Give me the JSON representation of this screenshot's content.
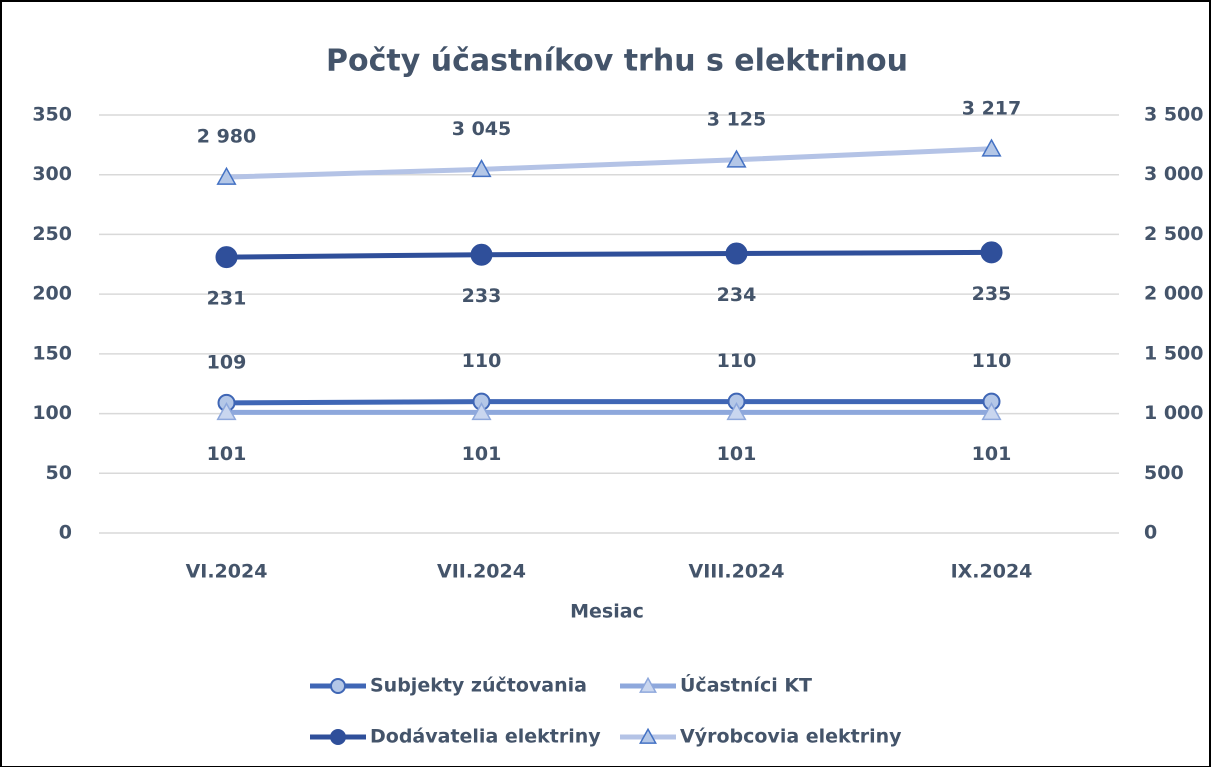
{
  "chart_data": {
    "type": "line",
    "title": "Počty účastníkov trhu s elektrinou",
    "x_label": "Mesiac",
    "categories": [
      "VI.2024",
      "VII.2024",
      "VIII.2024",
      "IX.2024"
    ],
    "series": [
      {
        "name": "Subjekty zúčtovania",
        "color": "#3f66b5",
        "marker": "circle",
        "marker_fill": "#b4c7e7",
        "label_position": "above",
        "axis": "y",
        "values": [
          109,
          110,
          110,
          110
        ]
      },
      {
        "name": "Účastníci KT",
        "color": "#8ea8dc",
        "marker": "triangle",
        "marker_fill": "#c9d6ef",
        "label_position": "below",
        "axis": "y",
        "values": [
          101,
          101,
          101,
          101
        ]
      },
      {
        "name": "Dodávatelia elektriny",
        "color": "#2f4f9a",
        "marker": "circle",
        "marker_fill": "#2f4f9a",
        "label_position": "below",
        "axis": "y",
        "values": [
          231,
          233,
          234,
          235
        ]
      },
      {
        "name": "Výrobcovia elektriny",
        "color": "#b4c3e6",
        "marker": "triangle",
        "marker_fill": "#b4c7e7",
        "label_position": "above",
        "axis": "y2",
        "values": [
          2980,
          3045,
          3125,
          3217
        ],
        "value_labels": [
          "2 980",
          "3 045",
          "3 125",
          "3 217"
        ]
      }
    ],
    "ylim": [
      0,
      350
    ],
    "yticks": [
      0,
      50,
      100,
      150,
      200,
      250,
      300,
      350
    ],
    "y2lim": [
      0,
      3500
    ],
    "y2ticks": [
      0,
      500,
      {
        "value": 1000,
        "label": "1 000"
      },
      {
        "value": 1500,
        "label": "1 500"
      },
      {
        "value": 2000,
        "label": "2 000"
      },
      {
        "value": 2500,
        "label": "2 500"
      },
      {
        "value": 3000,
        "label": "3 000"
      },
      {
        "value": 3500,
        "label": "3 500"
      }
    ],
    "grid": true,
    "legend": "bottom"
  }
}
